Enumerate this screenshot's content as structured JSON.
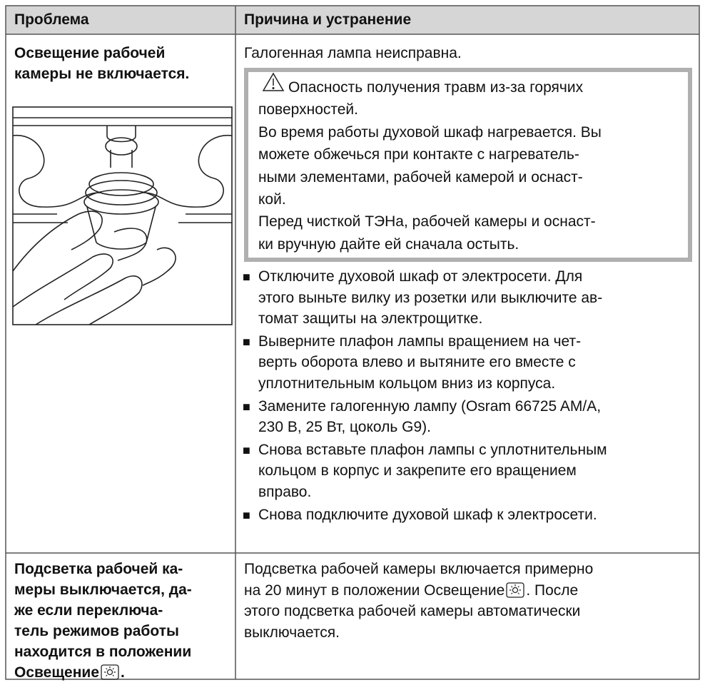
{
  "table": {
    "header": [
      "Проблема",
      "Причина и устранение"
    ],
    "rows": [
      {
        "problem": [
          "Освещение рабочей",
          "камеры не включается."
        ],
        "cause": [
          "Галогенная лампа неисправна."
        ],
        "warning": {
          "title": [
            "Опасность получения травм из-за горячих",
            "поверхностей."
          ],
          "paragraphs": [
            [
              "Во время работы духовой шкаф нагревается. Вы",
              "можете обжечься при контакте с нагреватель-",
              "ными элементами, рабочей камерой и оснаст-",
              "кой."
            ],
            [
              "Перед чисткой ТЭНа, рабочей камеры и оснаст-",
              "ки вручную дайте ей сначала остыть."
            ]
          ]
        },
        "steps": [
          [
            "Отключите духовой шкаф от электросети. Для",
            "этого выньте вилку из розетки или выключите ав-",
            "томат защиты на электрощитке."
          ],
          [
            "Выверните плафон лампы вращением на чет-",
            "верть оборота влево и вытяните его вместе с",
            "уплотнительным кольцом вниз из корпуса."
          ],
          [
            "Замените галогенную лампу (Osram 66725 AM/A,",
            "230 В, 25 Вт, цоколь G9)."
          ],
          [
            "Снова вставьте плафон лампы с уплотнительным",
            "кольцом в корпус и закрепите его вращением",
            "вправо."
          ],
          [
            "Снова подключите духовой шкаф к электросети."
          ]
        ]
      },
      {
        "problem": [
          [
            "Подсветка рабочей ка-"
          ],
          [
            "меры выключается, да-"
          ],
          [
            "же если переключа-"
          ],
          [
            "тель режимов работы"
          ],
          [
            "находится в положении"
          ],
          [
            "Освещение",
            "."
          ]
        ],
        "solution": [
          [
            "Подсветка рабочей камеры включается примерно"
          ],
          [
            "на 20 минут в положении Освещение",
            ". После"
          ],
          [
            "этого подсветка рабочей камеры автоматически"
          ],
          [
            "выключается."
          ]
        ]
      }
    ]
  }
}
